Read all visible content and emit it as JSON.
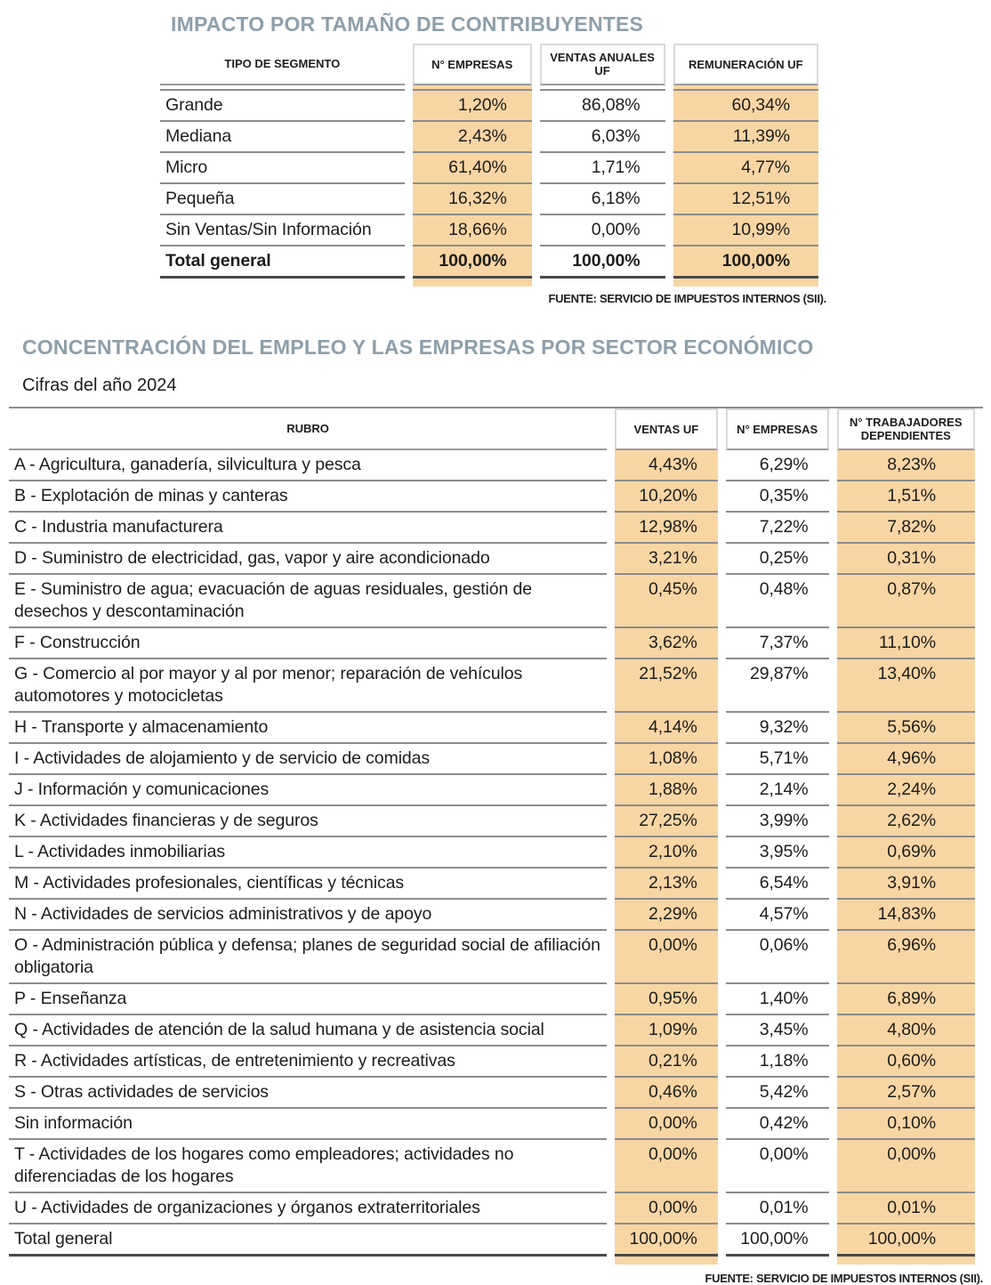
{
  "colors": {
    "title_accent": "#8d9faa",
    "column_highlight": "#f8d6a4",
    "row_line": "#8c8c8c"
  },
  "table1": {
    "title": "IMPACTO POR TAMAÑO DE CONTRIBUYENTES",
    "columns": [
      "TIPO DE SEGMENTO",
      "N° EMPRESAS",
      "VENTAS ANUALES UF",
      "REMUNERACIÓN UF"
    ],
    "highlight_value_cols": [
      0,
      2
    ],
    "rows": [
      {
        "label": "Grande",
        "values": [
          "1,20%",
          "86,08%",
          "60,34%"
        ]
      },
      {
        "label": "Mediana",
        "values": [
          "2,43%",
          "6,03%",
          "11,39%"
        ]
      },
      {
        "label": "Micro",
        "values": [
          "61,40%",
          "1,71%",
          "4,77%"
        ]
      },
      {
        "label": "Pequeña",
        "values": [
          "16,32%",
          "6,18%",
          "12,51%"
        ]
      },
      {
        "label": "Sin Ventas/Sin Información",
        "values": [
          "18,66%",
          "0,00%",
          "10,99%"
        ]
      },
      {
        "label": "Total general",
        "values": [
          "100,00%",
          "100,00%",
          "100,00%"
        ],
        "bold": true,
        "total": true
      }
    ],
    "source": "FUENTE: SERVICIO DE IMPUESTOS INTERNOS (SII)."
  },
  "table2": {
    "title": "CONCENTRACIÓN DEL EMPLEO Y LAS EMPRESAS POR SECTOR ECONÓMICO",
    "subtitle": "Cifras del año 2024",
    "columns": [
      "RUBRO",
      "VENTAS UF",
      "N° EMPRESAS",
      "N° TRABAJADORES DEPENDIENTES"
    ],
    "highlight_value_cols": [
      0,
      2
    ],
    "rows": [
      {
        "label": "A - Agricultura, ganadería, silvicultura y pesca",
        "values": [
          "4,43%",
          "6,29%",
          "8,23%"
        ]
      },
      {
        "label": "B - Explotación de minas y canteras",
        "values": [
          "10,20%",
          "0,35%",
          "1,51%"
        ]
      },
      {
        "label": "C - Industria manufacturera",
        "values": [
          "12,98%",
          "7,22%",
          "7,82%"
        ]
      },
      {
        "label": "D - Suministro de electricidad, gas, vapor y aire acondicionado",
        "values": [
          "3,21%",
          "0,25%",
          "0,31%"
        ]
      },
      {
        "label": "E - Suministro de agua; evacuación de aguas residuales, gestión de desechos y descontaminación",
        "values": [
          "0,45%",
          "0,48%",
          "0,87%"
        ]
      },
      {
        "label": "F - Construcción",
        "values": [
          "3,62%",
          "7,37%",
          "11,10%"
        ]
      },
      {
        "label": "G - Comercio al por mayor y al por menor; reparación de vehículos automotores y motocicletas",
        "values": [
          "21,52%",
          "29,87%",
          "13,40%"
        ]
      },
      {
        "label": "H - Transporte y almacenamiento",
        "values": [
          "4,14%",
          "9,32%",
          "5,56%"
        ]
      },
      {
        "label": "I - Actividades de alojamiento y de servicio de comidas",
        "values": [
          "1,08%",
          "5,71%",
          "4,96%"
        ]
      },
      {
        "label": "J - Información y comunicaciones",
        "values": [
          "1,88%",
          "2,14%",
          "2,24%"
        ]
      },
      {
        "label": "K - Actividades financieras y de seguros",
        "values": [
          "27,25%",
          "3,99%",
          "2,62%"
        ]
      },
      {
        "label": "L - Actividades inmobiliarias",
        "values": [
          "2,10%",
          "3,95%",
          "0,69%"
        ]
      },
      {
        "label": "M - Actividades profesionales, científicas y técnicas",
        "values": [
          "2,13%",
          "6,54%",
          "3,91%"
        ]
      },
      {
        "label": "N - Actividades de servicios administrativos y de apoyo",
        "values": [
          "2,29%",
          "4,57%",
          "14,83%"
        ]
      },
      {
        "label": "O - Administración pública y defensa; planes de seguridad social de afiliación obligatoria",
        "values": [
          "0,00%",
          "0,06%",
          "6,96%"
        ]
      },
      {
        "label": "P - Enseñanza",
        "values": [
          "0,95%",
          "1,40%",
          "6,89%"
        ]
      },
      {
        "label": "Q - Actividades de atención de la salud humana y de asistencia social",
        "values": [
          "1,09%",
          "3,45%",
          "4,80%"
        ]
      },
      {
        "label": "R - Actividades artísticas, de entretenimiento y recreativas",
        "values": [
          "0,21%",
          "1,18%",
          "0,60%"
        ]
      },
      {
        "label": "S - Otras actividades de servicios",
        "values": [
          "0,46%",
          "5,42%",
          "2,57%"
        ]
      },
      {
        "label": "Sin información",
        "values": [
          "0,00%",
          "0,42%",
          "0,10%"
        ]
      },
      {
        "label": "T - Actividades de los hogares como empleadores; actividades no diferenciadas de los hogares",
        "values": [
          "0,00%",
          "0,00%",
          "0,00%"
        ]
      },
      {
        "label": "U - Actividades de organizaciones y órganos extraterritoriales",
        "values": [
          "0,00%",
          "0,01%",
          "0,01%"
        ]
      },
      {
        "label": "Total general",
        "values": [
          "100,00%",
          "100,00%",
          "100,00%"
        ],
        "total": true
      }
    ],
    "source": "FUENTE: SERVICIO DE IMPUESTOS INTERNOS (SII)."
  }
}
